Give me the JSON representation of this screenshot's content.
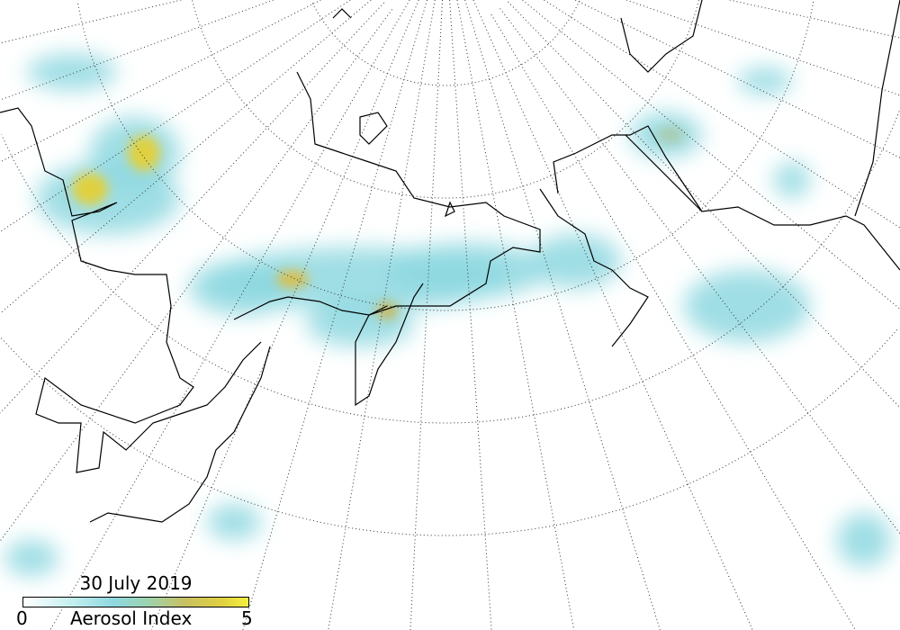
{
  "date_label": "30 July 2019",
  "legend": {
    "label": "Aerosol Index",
    "min": "0",
    "max": "5",
    "colors": [
      "#ffffff",
      "#8ed8e0",
      "#c8c060",
      "#f4f040"
    ]
  },
  "map": {
    "projection": "polar stereographic",
    "graticule": "dotted",
    "coastline_color": "#000000"
  }
}
